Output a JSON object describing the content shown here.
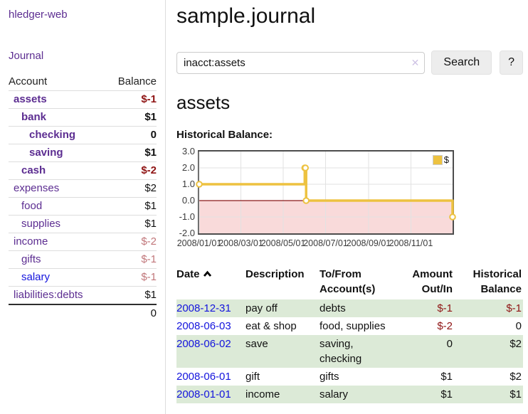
{
  "colors": {
    "link_purple": "#5c2d91",
    "link_blue": "#1414dd",
    "negative_strong": "#8f1414",
    "negative_soft": "#c1767a",
    "row_green": "#dcead7",
    "series_yellow": "#edc240"
  },
  "sidebar": {
    "app_title": "hledger-web",
    "journal_link": "Journal",
    "accounts": {
      "headers": {
        "account": "Account",
        "balance": "Balance"
      },
      "rows": [
        {
          "label": "assets",
          "level": 1,
          "bold": true,
          "link": "purple",
          "balance": "$-1",
          "bclass": "neg"
        },
        {
          "label": "bank",
          "level": 2,
          "bold": true,
          "link": "purple",
          "balance": "$1",
          "bclass": ""
        },
        {
          "label": "checking",
          "level": 3,
          "bold": true,
          "link": "purple",
          "balance": "0",
          "bclass": ""
        },
        {
          "label": "saving",
          "level": 3,
          "bold": true,
          "link": "purple",
          "balance": "$1",
          "bclass": ""
        },
        {
          "label": "cash",
          "level": 2,
          "bold": true,
          "link": "purple",
          "balance": "$-2",
          "bclass": "neg"
        },
        {
          "label": "expenses",
          "level": 1,
          "bold": false,
          "link": "purple",
          "balance": "$2",
          "bclass": ""
        },
        {
          "label": "food",
          "level": 2,
          "bold": false,
          "link": "purple",
          "balance": "$1",
          "bclass": ""
        },
        {
          "label": "supplies",
          "level": 2,
          "bold": false,
          "link": "purple",
          "balance": "$1",
          "bclass": ""
        },
        {
          "label": "income",
          "level": 1,
          "bold": false,
          "link": "purple",
          "balance": "$-2",
          "bclass": "negsoft"
        },
        {
          "label": "gifts",
          "level": 2,
          "bold": false,
          "link": "purple",
          "balance": "$-1",
          "bclass": "negsoft"
        },
        {
          "label": "salary",
          "level": 2,
          "bold": false,
          "link": "blue",
          "balance": "$-1",
          "bclass": "negsoft"
        },
        {
          "label": "liabilities:debts",
          "level": 1,
          "bold": false,
          "link": "purple",
          "balance": "$1",
          "bclass": ""
        }
      ],
      "total": "0"
    }
  },
  "main": {
    "title": "sample.journal",
    "search": {
      "value": "inacct:assets",
      "clear_icon": "✕",
      "button_label": "Search",
      "help_label": "?"
    },
    "account_heading": "assets"
  },
  "chart_data": {
    "type": "line",
    "step": true,
    "title": "Historical Balance:",
    "series": [
      {
        "name": "$",
        "color": "#edc240",
        "points": [
          [
            "2008-01-01",
            1
          ],
          [
            "2008-06-01",
            2
          ],
          [
            "2008-06-02",
            2
          ],
          [
            "2008-06-03",
            0
          ],
          [
            "2008-12-31",
            -1
          ]
        ]
      }
    ],
    "x_start": "2008-01-01",
    "x_end": "2008-12-31",
    "xticks": [
      {
        "date": "2008-01-01",
        "label": "2008/01/01"
      },
      {
        "date": "2008-03-01",
        "label": "2008/03/01"
      },
      {
        "date": "2008-05-01",
        "label": "2008/05/01"
      },
      {
        "date": "2008-07-01",
        "label": "2008/07/01"
      },
      {
        "date": "2008-09-01",
        "label": "2008/09/01"
      },
      {
        "date": "2008-11-01",
        "label": "2008/11/01"
      }
    ],
    "yticks": [
      "3.0",
      "2.0",
      "1.0",
      "0.0",
      "-1.0",
      "-2.0"
    ],
    "ylim": [
      -2,
      3
    ],
    "grid_on": true,
    "grid_color": "#e2e2e2",
    "negative_region_fill": "#f9dada",
    "zero_line_color": "#8b1a1a",
    "legend_position": "top-right"
  },
  "register": {
    "headers": {
      "date": "Date",
      "description": "Description",
      "accounts": "To/From Account(s)",
      "amount": "Amount Out/In",
      "balance": "Historical Balance"
    },
    "rows": [
      {
        "date": "2008-12-31",
        "description": "pay off",
        "accounts": "debts",
        "amount": "$-1",
        "amount_neg": true,
        "balance": "$-1",
        "balance_neg": true
      },
      {
        "date": "2008-06-03",
        "description": "eat & shop",
        "accounts": "food, supplies",
        "amount": "$-2",
        "amount_neg": true,
        "balance": "0",
        "balance_neg": false
      },
      {
        "date": "2008-06-02",
        "description": "save",
        "accounts": "saving, checking",
        "amount": "0",
        "amount_neg": false,
        "balance": "$2",
        "balance_neg": false
      },
      {
        "date": "2008-06-01",
        "description": "gift",
        "accounts": "gifts",
        "amount": "$1",
        "amount_neg": false,
        "balance": "$2",
        "balance_neg": false
      },
      {
        "date": "2008-01-01",
        "description": "income",
        "accounts": "salary",
        "amount": "$1",
        "amount_neg": false,
        "balance": "$1",
        "balance_neg": false
      }
    ]
  }
}
